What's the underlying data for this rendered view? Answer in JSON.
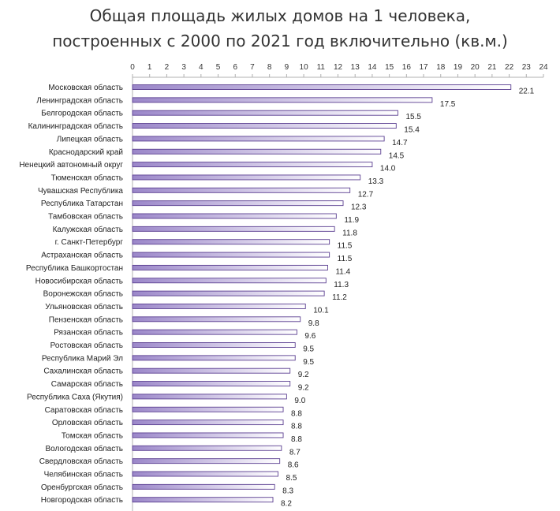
{
  "chart_data": {
    "type": "bar",
    "orientation": "horizontal",
    "title": "Общая площадь жилых домов на 1 человека,",
    "subtitle": "построенных с 2000 по 2021 год включительно (кв.м.)",
    "xlim": [
      0,
      24
    ],
    "x_ticks": [
      "0",
      "1",
      "2",
      "3",
      "4",
      "5",
      "6",
      "7",
      "8",
      "9",
      "10",
      "11",
      "12",
      "13",
      "14",
      "15",
      "16",
      "17",
      "18",
      "19",
      "20",
      "21",
      "22",
      "23",
      "24"
    ],
    "x_axis_position": "top",
    "grid": false,
    "legend": "none",
    "categories": [
      "Московская область",
      "Ленинградская область",
      "Белгородская область",
      "Калининградская область",
      "Липецкая область",
      "Краснодарский край",
      "Ненецкий автономный округ",
      "Тюменская область",
      "Чувашская Республика",
      "Республика Татарстан",
      "Тамбовская область",
      "Калужская область",
      "г. Санкт-Петербург",
      "Астраханская область",
      "Республика Башкортостан",
      "Новосибирская область",
      "Воронежская область",
      "Ульяновская область",
      "Пензенская область",
      "Рязанская область",
      "Ростовская область",
      "Республика Марий Эл",
      "Сахалинская область",
      "Самарская область",
      "Республика Саха (Якутия)",
      "Саратовская область",
      "Орловская область",
      "Томская область",
      "Вологодская область",
      "Свердловская область",
      "Челябинская область",
      "Оренбургская область",
      "Новгородская область"
    ],
    "values": [
      22.1,
      17.5,
      15.5,
      15.4,
      14.7,
      14.5,
      14.0,
      13.3,
      12.7,
      12.3,
      11.9,
      11.8,
      11.5,
      11.5,
      11.4,
      11.3,
      11.2,
      10.1,
      9.8,
      9.6,
      9.5,
      9.5,
      9.2,
      9.2,
      9.0,
      8.8,
      8.8,
      8.8,
      8.7,
      8.6,
      8.5,
      8.3,
      8.2
    ],
    "value_labels": [
      "22.1",
      "17.5",
      "15.5",
      "15.4",
      "14.7",
      "14.5",
      "14.0",
      "13.3",
      "12.7",
      "12.3",
      "11.9",
      "11.8",
      "11.5",
      "11.5",
      "11.4",
      "11.3",
      "11.2",
      "10.1",
      "9.8",
      "9.6",
      "9.5",
      "9.5",
      "9.2",
      "9.2",
      "9.0",
      "8.8",
      "8.8",
      "8.8",
      "8.7",
      "8.6",
      "8.5",
      "8.3",
      "8.2"
    ],
    "colors": {
      "bar_fill_start": "#9b87c9",
      "bar_fill_end": "#ffffff",
      "bar_stroke": "#5b3f91",
      "axis": "#b0b0b0",
      "text": "#222222"
    }
  }
}
